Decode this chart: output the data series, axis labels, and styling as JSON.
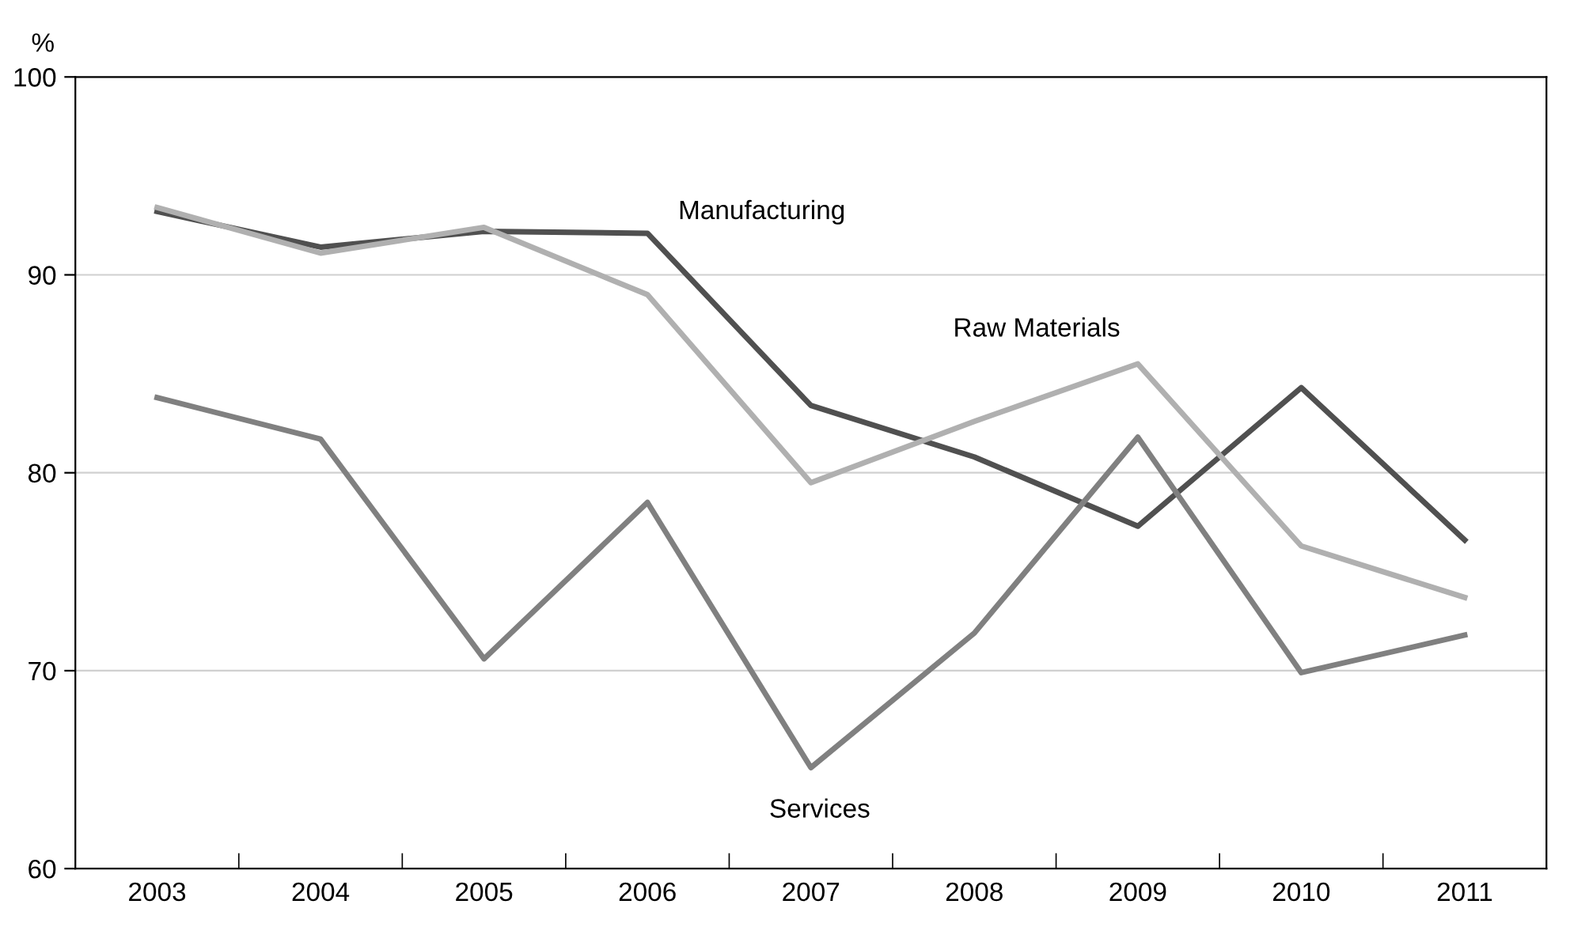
{
  "chart_data": {
    "type": "line",
    "ylabel": "%",
    "categories": [
      "2003",
      "2004",
      "2005",
      "2006",
      "2007",
      "2008",
      "2009",
      "2010",
      "2011"
    ],
    "series": [
      {
        "name": "Manufacturing",
        "color": "#505050",
        "values": [
          93.2,
          91.4,
          92.2,
          92.1,
          83.4,
          80.8,
          77.3,
          84.3,
          76.6
        ]
      },
      {
        "name": "Raw Materials",
        "color": "#b0b0b0",
        "values": [
          93.4,
          91.1,
          92.4,
          89.0,
          79.5,
          82.6,
          85.5,
          76.3,
          73.7
        ]
      },
      {
        "name": "Services",
        "color": "#808080",
        "values": [
          83.8,
          81.7,
          70.6,
          78.5,
          65.1,
          71.9,
          81.8,
          69.9,
          71.8
        ]
      }
    ],
    "ylim": [
      60,
      100
    ],
    "yticks": [
      60,
      70,
      80,
      90,
      100
    ],
    "grid": "y",
    "legend": false,
    "marker": "none",
    "line_style": "solid"
  }
}
